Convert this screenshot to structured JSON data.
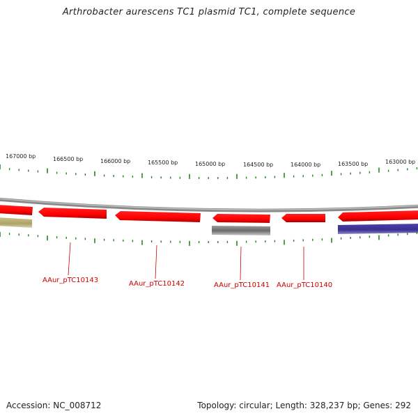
{
  "title": "Arthrobacter aurescens TC1 plasmid TC1, complete sequence",
  "footer": {
    "accession": "Accession: NC_008712",
    "summary": "Topology: circular; Length: 328,237 bp; Genes: 292"
  },
  "colors": {
    "backbone": "#888888",
    "tick": "#1a8a1a",
    "forward_gene": "#ff0000",
    "label": "#cc0000",
    "olive_gene": "#b5ad6e",
    "gray_gene": "#6e6e6e",
    "purple_gene": "#3a3090"
  },
  "scale_labels": [
    {
      "text": "167000 bp"
    },
    {
      "text": "166500 bp"
    },
    {
      "text": "166000 bp"
    },
    {
      "text": "165500 bp"
    },
    {
      "text": "165000 bp"
    },
    {
      "text": "164500 bp"
    },
    {
      "text": "164000 bp"
    },
    {
      "text": "163500 bp"
    },
    {
      "text": "163000 bp"
    }
  ],
  "gene_labels": [
    {
      "text": "AAur_pTC10143"
    },
    {
      "text": "AAur_pTC10142"
    },
    {
      "text": "AAur_pTC10141"
    },
    {
      "text": "AAur_pTC10140"
    }
  ]
}
